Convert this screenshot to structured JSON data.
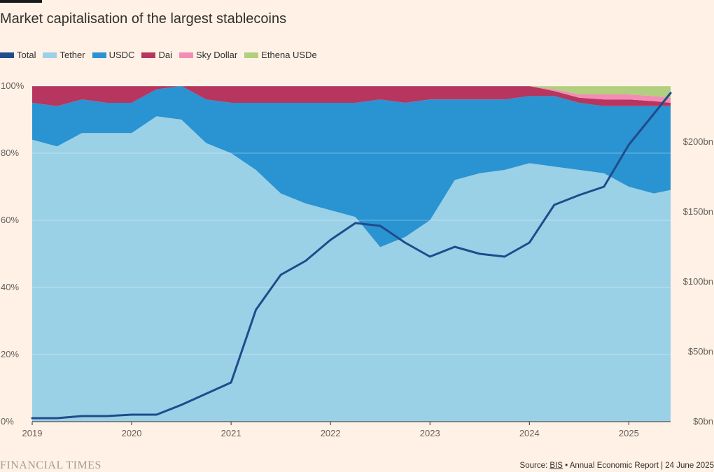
{
  "title": "Market capitalisation of the largest stablecoins",
  "legend": [
    {
      "label": "Total",
      "color": "#204b8c"
    },
    {
      "label": "Tether",
      "color": "#9ad1e6"
    },
    {
      "label": "USDC",
      "color": "#2a93d2"
    },
    {
      "label": "Dai",
      "color": "#b6365f"
    },
    {
      "label": "Sky Dollar",
      "color": "#f38db5"
    },
    {
      "label": "Ethena USDe",
      "color": "#b1cf7e"
    }
  ],
  "footer": {
    "logo": "FINANCIAL TIMES",
    "source_prefix": "Source: ",
    "source_link": "BIS",
    "source_suffix": " • Annual Economic Report | 24 June 2025"
  },
  "chart_data": {
    "type": "area",
    "title": "Market capitalisation of the largest stablecoins",
    "x": [
      2019,
      2019.25,
      2019.5,
      2019.75,
      2020,
      2020.25,
      2020.5,
      2020.75,
      2021,
      2021.25,
      2021.5,
      2021.75,
      2022,
      2022.25,
      2022.5,
      2022.75,
      2023,
      2023.25,
      2023.5,
      2023.75,
      2024,
      2024.25,
      2024.5,
      2024.75,
      2025,
      2025.25,
      2025.42
    ],
    "x_ticks": [
      "2019",
      "2020",
      "2021",
      "2022",
      "2023",
      "2024",
      "2025"
    ],
    "xlim": [
      2019,
      2025.42
    ],
    "left_axis": {
      "ticks": [
        "0%",
        "20%",
        "40%",
        "60%",
        "80%",
        "100%"
      ],
      "ylim": [
        0,
        100
      ],
      "unit": "%"
    },
    "right_axis": {
      "ticks": [
        "$0bn",
        "$50bn",
        "$100bn",
        "$150bn",
        "$200bn"
      ],
      "ylim": [
        0,
        240
      ],
      "unit": "$bn"
    },
    "series": [
      {
        "name": "Tether",
        "axis": "left",
        "stacked": true,
        "color": "#9ad1e6",
        "values": [
          84,
          82,
          86,
          86,
          86,
          91,
          90,
          83,
          80,
          75,
          68,
          65,
          63,
          61,
          52,
          55,
          60,
          72,
          74,
          75,
          77,
          76,
          75,
          74,
          70,
          68,
          69
        ]
      },
      {
        "name": "USDC",
        "axis": "left",
        "stacked": true,
        "color": "#2a93d2",
        "values": [
          11,
          12,
          10,
          9,
          9,
          8,
          10,
          13,
          15,
          20,
          27,
          30,
          32,
          34,
          44,
          40,
          36,
          24,
          22,
          21,
          20,
          21,
          20,
          20,
          24,
          26,
          25
        ]
      },
      {
        "name": "Dai",
        "axis": "left",
        "stacked": true,
        "color": "#b6365f",
        "values": [
          5,
          6,
          4,
          5,
          5,
          1,
          0,
          4,
          5,
          5,
          5,
          5,
          5,
          5,
          4,
          5,
          4,
          4,
          4,
          4,
          3,
          1.5,
          1.5,
          2,
          2,
          1.5,
          1
        ]
      },
      {
        "name": "Sky Dollar",
        "axis": "left",
        "stacked": true,
        "color": "#f38db5",
        "values": [
          0,
          0,
          0,
          0,
          0,
          0,
          0,
          0,
          0,
          0,
          0,
          0,
          0,
          0,
          0,
          0,
          0,
          0,
          0,
          0,
          0,
          0.5,
          1,
          1.5,
          1.5,
          1.5,
          1.5
        ]
      },
      {
        "name": "Ethena USDe",
        "axis": "left",
        "stacked": true,
        "color": "#b1cf7e",
        "values": [
          0,
          0,
          0,
          0,
          0,
          0,
          0,
          0,
          0,
          0,
          0,
          0,
          0,
          0,
          0,
          0,
          0,
          0,
          0,
          0,
          0,
          1,
          2.5,
          2.5,
          2.5,
          3,
          3.5
        ]
      },
      {
        "name": "Total",
        "axis": "right",
        "stacked": false,
        "color": "#204b8c",
        "values": [
          2.5,
          2.5,
          4,
          4,
          5,
          5,
          12,
          20,
          28,
          80,
          105,
          115,
          130,
          142,
          140,
          128,
          118,
          125,
          120,
          118,
          128,
          155,
          162,
          168,
          198,
          220,
          235
        ]
      }
    ]
  }
}
